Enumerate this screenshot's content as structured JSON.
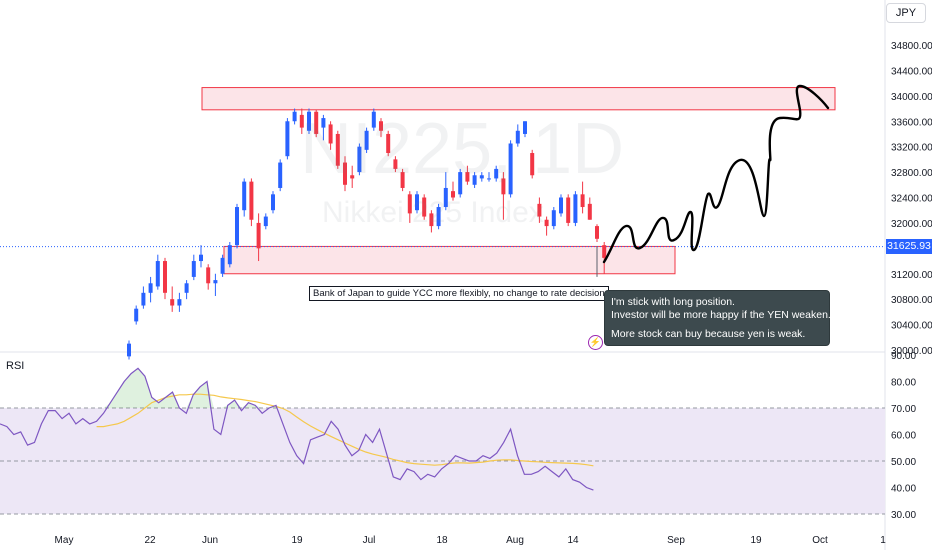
{
  "currency_label": "JPY",
  "watermark": {
    "symbol": "NI225, 1D",
    "name": "Nikkei 225 Index"
  },
  "rsi_label": "RSI",
  "last_price": "31625.93",
  "event_label": "Bank of Japan to guide YCC more flexibly, no change to rate decision",
  "callout": {
    "line1": "I'm stick with long position.",
    "line2": "Investor will be more happy if the YEN weaken..",
    "line3": "More stock can buy because yen is weak."
  },
  "colors": {
    "up": "#2962ff",
    "down": "#f23645",
    "zone_fill": "#fce4e8",
    "zone_border": "#f23645",
    "rsi_line": "#7e57c2",
    "rsi_ma": "#f5c84c",
    "rsi_band": "#ede7f6"
  },
  "chart_data": [
    {
      "type": "candlestick",
      "title": "NI225, 1D",
      "subtitle": "Nikkei 225 Index",
      "ylim": [
        30000,
        34900
      ],
      "y_ticks": [
        "34800.00",
        "34400.00",
        "34000.00",
        "33600.00",
        "33200.00",
        "32800.00",
        "32400.00",
        "32000.00",
        "31200.00",
        "30800.00",
        "30400.00",
        "30000.00"
      ],
      "x_ticks": [
        "May",
        "22",
        "Jun",
        "19",
        "Jul",
        "18",
        "Aug",
        "14",
        "Sep",
        "19",
        "Oct",
        "1"
      ],
      "candles": [
        {
          "o": 29900,
          "h": 30150,
          "l": 29850,
          "c": 30100
        },
        {
          "o": 30450,
          "h": 30700,
          "l": 30400,
          "c": 30650
        },
        {
          "o": 30700,
          "h": 31000,
          "l": 30650,
          "c": 30900
        },
        {
          "o": 30900,
          "h": 31150,
          "l": 30750,
          "c": 31050
        },
        {
          "o": 31000,
          "h": 31500,
          "l": 30950,
          "c": 31400
        },
        {
          "o": 31400,
          "h": 31450,
          "l": 30800,
          "c": 30900
        },
        {
          "o": 30800,
          "h": 31000,
          "l": 30600,
          "c": 30700
        },
        {
          "o": 30700,
          "h": 30900,
          "l": 30600,
          "c": 30800
        },
        {
          "o": 30900,
          "h": 31100,
          "l": 30800,
          "c": 31050
        },
        {
          "o": 31150,
          "h": 31500,
          "l": 31100,
          "c": 31400
        },
        {
          "o": 31400,
          "h": 31650,
          "l": 31300,
          "c": 31500
        },
        {
          "o": 31300,
          "h": 31350,
          "l": 30950,
          "c": 31050
        },
        {
          "o": 31050,
          "h": 31200,
          "l": 30850,
          "c": 31100
        },
        {
          "o": 31200,
          "h": 31500,
          "l": 31150,
          "c": 31450
        },
        {
          "o": 31350,
          "h": 31700,
          "l": 31300,
          "c": 31650
        },
        {
          "o": 31650,
          "h": 32300,
          "l": 31600,
          "c": 32250
        },
        {
          "o": 32200,
          "h": 32700,
          "l": 32100,
          "c": 32650
        },
        {
          "o": 32650,
          "h": 32700,
          "l": 31950,
          "c": 32050
        },
        {
          "o": 32000,
          "h": 32150,
          "l": 31400,
          "c": 31600
        },
        {
          "o": 31950,
          "h": 32150,
          "l": 31900,
          "c": 32100
        },
        {
          "o": 32200,
          "h": 32500,
          "l": 32150,
          "c": 32450
        },
        {
          "o": 32550,
          "h": 33000,
          "l": 32500,
          "c": 32950
        },
        {
          "o": 33050,
          "h": 33650,
          "l": 33000,
          "c": 33600
        },
        {
          "o": 33600,
          "h": 33800,
          "l": 33550,
          "c": 33750
        },
        {
          "o": 33700,
          "h": 33800,
          "l": 33400,
          "c": 33500
        },
        {
          "o": 33450,
          "h": 33800,
          "l": 33400,
          "c": 33750
        },
        {
          "o": 33750,
          "h": 33780,
          "l": 33350,
          "c": 33400
        },
        {
          "o": 33500,
          "h": 33700,
          "l": 33300,
          "c": 33650
        },
        {
          "o": 33550,
          "h": 33600,
          "l": 33150,
          "c": 33250
        },
        {
          "o": 33400,
          "h": 33450,
          "l": 32850,
          "c": 32900
        },
        {
          "o": 32950,
          "h": 33050,
          "l": 32500,
          "c": 32600
        },
        {
          "o": 32750,
          "h": 32900,
          "l": 32550,
          "c": 32700
        },
        {
          "o": 32800,
          "h": 33250,
          "l": 32750,
          "c": 33200
        },
        {
          "o": 33150,
          "h": 33500,
          "l": 33100,
          "c": 33450
        },
        {
          "o": 33500,
          "h": 33800,
          "l": 33450,
          "c": 33750
        },
        {
          "o": 33600,
          "h": 33650,
          "l": 33350,
          "c": 33450
        },
        {
          "o": 33400,
          "h": 33450,
          "l": 33050,
          "c": 33100
        },
        {
          "o": 33000,
          "h": 33050,
          "l": 32800,
          "c": 32850
        },
        {
          "o": 32800,
          "h": 32850,
          "l": 32500,
          "c": 32550
        },
        {
          "o": 32450,
          "h": 32500,
          "l": 32000,
          "c": 32150
        },
        {
          "o": 32200,
          "h": 32500,
          "l": 32150,
          "c": 32450
        },
        {
          "o": 32400,
          "h": 32450,
          "l": 32050,
          "c": 32100
        },
        {
          "o": 32150,
          "h": 32200,
          "l": 31850,
          "c": 31950
        },
        {
          "o": 31950,
          "h": 32300,
          "l": 31900,
          "c": 32250
        },
        {
          "o": 32250,
          "h": 32800,
          "l": 32200,
          "c": 32550
        },
        {
          "o": 32500,
          "h": 32650,
          "l": 32350,
          "c": 32400
        },
        {
          "o": 32450,
          "h": 32850,
          "l": 32400,
          "c": 32800
        },
        {
          "o": 32800,
          "h": 32900,
          "l": 32600,
          "c": 32650
        },
        {
          "o": 32600,
          "h": 32800,
          "l": 32550,
          "c": 32750
        },
        {
          "o": 32700,
          "h": 32800,
          "l": 32650,
          "c": 32750
        },
        {
          "o": 32700,
          "h": 32800,
          "l": 32650,
          "c": 32700
        },
        {
          "o": 32700,
          "h": 32900,
          "l": 32650,
          "c": 32850
        },
        {
          "o": 32700,
          "h": 32800,
          "l": 32050,
          "c": 32450
        },
        {
          "o": 32450,
          "h": 33300,
          "l": 32400,
          "c": 33250
        },
        {
          "o": 33250,
          "h": 33550,
          "l": 33200,
          "c": 33450
        },
        {
          "o": 33400,
          "h": 33600,
          "l": 33350,
          "c": 33600
        },
        {
          "o": 33100,
          "h": 33150,
          "l": 32700,
          "c": 32750
        },
        {
          "o": 32300,
          "h": 32400,
          "l": 32000,
          "c": 32100
        },
        {
          "o": 32050,
          "h": 32100,
          "l": 31800,
          "c": 31950
        },
        {
          "o": 31950,
          "h": 32250,
          "l": 31900,
          "c": 32200
        },
        {
          "o": 32150,
          "h": 32450,
          "l": 32100,
          "c": 32400
        },
        {
          "o": 32400,
          "h": 32450,
          "l": 31950,
          "c": 32000
        },
        {
          "o": 32000,
          "h": 32500,
          "l": 31950,
          "c": 32450
        },
        {
          "o": 32450,
          "h": 32650,
          "l": 32150,
          "c": 32250
        },
        {
          "o": 32300,
          "h": 32400,
          "l": 32050,
          "c": 32050
        },
        {
          "o": 31950,
          "h": 31980,
          "l": 31700,
          "c": 31750
        },
        {
          "o": 31650,
          "h": 31700,
          "l": 31200,
          "c": 31450
        }
      ],
      "annotations": {
        "resistance_zone": [
          33780,
          34130
        ],
        "support_zone": [
          31200,
          31630
        ],
        "event_label": "Bank of Japan to guide YCC more flexibly, no change to rate decision"
      },
      "last_price": 31625.93
    },
    {
      "type": "line",
      "title": "RSI",
      "ylim": [
        27,
        92
      ],
      "y_ticks": [
        "90.00",
        "80.00",
        "70.00",
        "60.00",
        "50.00",
        "40.00",
        "30.00"
      ],
      "band": [
        30,
        70
      ],
      "midline": 50,
      "series": [
        {
          "values": [
            64,
            63,
            60,
            61,
            56,
            57,
            64,
            69,
            69,
            66,
            68,
            64,
            66,
            64,
            65,
            68,
            72,
            76,
            80,
            83,
            85,
            82,
            74,
            72,
            74,
            76,
            70,
            68,
            75,
            78,
            80,
            62,
            60,
            71,
            73,
            69,
            72,
            71,
            68,
            70,
            71,
            64,
            57,
            52,
            49,
            58,
            59,
            60,
            65,
            62,
            56,
            52,
            54,
            60,
            57,
            62,
            53,
            44,
            43,
            47,
            46,
            43,
            45,
            44,
            47,
            49,
            52,
            51,
            50,
            50,
            52,
            51,
            53,
            57,
            62,
            52,
            45,
            45,
            46,
            48,
            46,
            44,
            47,
            43,
            42,
            40,
            39
          ]
        },
        {
          "values": [
            null,
            null,
            null,
            null,
            null,
            null,
            null,
            null,
            null,
            null,
            null,
            null,
            null,
            null,
            63,
            63,
            63.5,
            64,
            65,
            66.5,
            68,
            70,
            72,
            73,
            74,
            74.5,
            75,
            75,
            75.2,
            75.2,
            75,
            74.8,
            74.2,
            73.8,
            73.5,
            73.2,
            72.8,
            72.4,
            71.8,
            71.2,
            70.6,
            69.8,
            68.5,
            66.6,
            64.8,
            63.2,
            61.8,
            60.5,
            59.2,
            58,
            56.8,
            55.6,
            54.4,
            53.4,
            52.6,
            52,
            51.4,
            50.6,
            50,
            49.4,
            49,
            48.8,
            48.6,
            48.4,
            48.6,
            49,
            49.3,
            49.3,
            49.2,
            49.4,
            49.6,
            50,
            50.3,
            50.4,
            50.4,
            50.2,
            50,
            49.8,
            49.7,
            49.5,
            49.4,
            49.3,
            49.2,
            49.1,
            48.9,
            48.6,
            48.2
          ]
        }
      ]
    }
  ]
}
